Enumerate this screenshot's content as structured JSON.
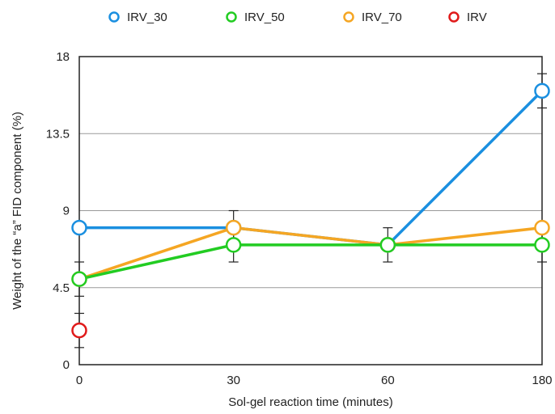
{
  "chart_data": {
    "type": "line",
    "xlabel": "Sol-gel reaction time (minutes)",
    "ylabel": "Weight of the “a” FID component (%)",
    "categories": [
      "0",
      "30",
      "60",
      "180"
    ],
    "ylim": [
      0,
      18
    ],
    "yticks": [
      "0",
      "4.5",
      "9",
      "13.5",
      "18"
    ],
    "grid": "horizontal",
    "legend_position": "top",
    "series": [
      {
        "name": "IRV_30",
        "color": "#1a8fe0",
        "values": [
          8.0,
          8.0,
          7.0,
          16.0
        ],
        "errors": [
          null,
          1.0,
          1.0,
          1.0
        ]
      },
      {
        "name": "IRV_50",
        "color": "#22cc22",
        "values": [
          5.0,
          7.0,
          7.0,
          7.0
        ],
        "errors": [
          1.0,
          1.0,
          null,
          1.0
        ]
      },
      {
        "name": "IRV_70",
        "color": "#f5a623",
        "values": [
          5.0,
          8.0,
          7.0,
          8.0
        ],
        "errors": [
          null,
          null,
          null,
          null
        ]
      },
      {
        "name": "IRV",
        "color": "#e01a1a",
        "values": [
          2.0,
          null,
          null,
          null
        ],
        "errors": [
          1.0,
          null,
          null,
          null
        ]
      }
    ]
  }
}
